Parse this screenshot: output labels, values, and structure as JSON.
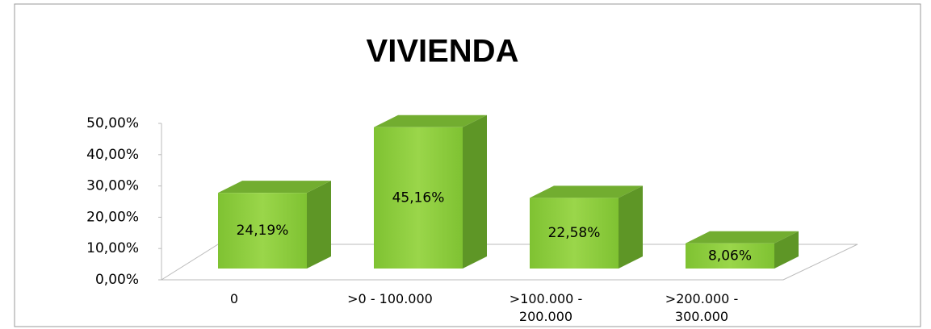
{
  "chart_data": {
    "type": "bar3d",
    "title": "VIVIENDA",
    "categories": [
      "0",
      ">0 - 100.000",
      ">100.000 - 200.000",
      ">200.000 - 300.000"
    ],
    "values": [
      24.19,
      45.16,
      22.58,
      8.06
    ],
    "value_labels": [
      "24,19%",
      "45,16%",
      "22,58%",
      "8,06%"
    ],
    "color": "#8ccc3c",
    "ylim": [
      0,
      50
    ],
    "yticks": [
      {
        "value": 0,
        "label": "0,00%"
      },
      {
        "value": 10,
        "label": "10,00%"
      },
      {
        "value": 20,
        "label": "20,00%"
      },
      {
        "value": 30,
        "label": "30,00%"
      },
      {
        "value": 40,
        "label": "40,00%"
      },
      {
        "value": 50,
        "label": "50,00%"
      }
    ],
    "grid": false
  }
}
